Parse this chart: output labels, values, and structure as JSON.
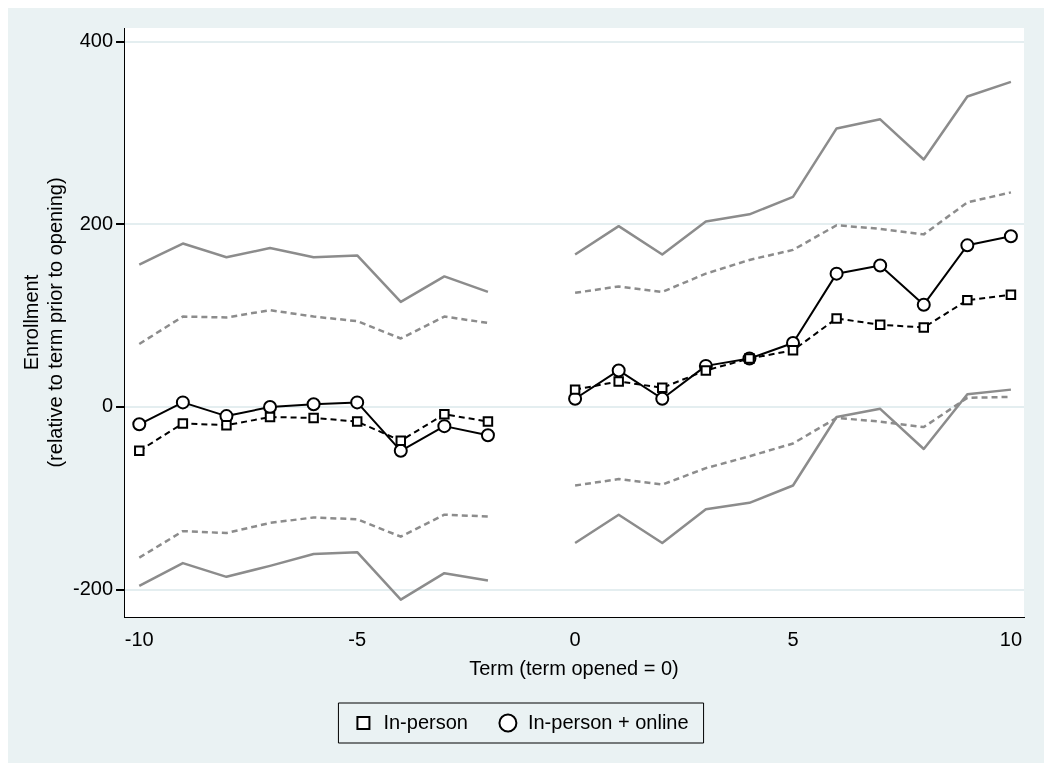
{
  "chart_data": {
    "type": "line",
    "xlabel": "Term (term opened = 0)",
    "ylabel": "Enrollment\n(relative to term prior to opening)",
    "x": [
      -10,
      -9,
      -8,
      -7,
      -6,
      -5,
      -4,
      -3,
      -2,
      -1,
      0,
      1,
      2,
      3,
      4,
      5,
      6,
      7,
      8,
      9,
      10
    ],
    "xlim": [
      -10.35,
      10.3
    ],
    "xticks": [
      -10,
      -5,
      0,
      5,
      10
    ],
    "ylim": [
      -230,
      415
    ],
    "yticks": [
      -200,
      0,
      200,
      400
    ],
    "grid": "y",
    "legend": "bottom",
    "series": [
      {
        "color": "#8c8c8c",
        "line_style": "solid",
        "marker": "none",
        "values": [
          156,
          179,
          164,
          174,
          164,
          166,
          115,
          143,
          126,
          null,
          167,
          198,
          167,
          203,
          211,
          230,
          305,
          315,
          271,
          340,
          356
        ]
      },
      {
        "color": "#8c8c8c",
        "line_style": "dashed",
        "marker": "none",
        "values": [
          69,
          99,
          98,
          106,
          99,
          94,
          75,
          99,
          92,
          null,
          125,
          132,
          126,
          146,
          161,
          172,
          199,
          195,
          189,
          224,
          235
        ]
      },
      {
        "color": "#8c8c8c",
        "line_style": "dashed",
        "marker": "none",
        "values": [
          -165,
          -136,
          -138,
          -127,
          -121,
          -123,
          -142,
          -118,
          -120,
          null,
          -86,
          -79,
          -85,
          -67,
          -54,
          -40,
          -12,
          -16,
          -22,
          10,
          11
        ]
      },
      {
        "color": "#8c8c8c",
        "line_style": "solid",
        "marker": "none",
        "values": [
          -196,
          -171,
          -186,
          -174,
          -161,
          -159,
          -211,
          -182,
          -190,
          null,
          -149,
          -118,
          -149,
          -112,
          -105,
          -86,
          -11,
          -2,
          -46,
          14,
          19
        ]
      },
      {
        "name": "In-person",
        "color": "#000000",
        "line_style": "dashed",
        "marker": "square",
        "values": [
          -48,
          -18,
          -20,
          -11,
          -12,
          -16,
          -37,
          -8,
          -16,
          null,
          19,
          28,
          21,
          40,
          53,
          62,
          97,
          90,
          87,
          117,
          123
        ]
      },
      {
        "name": "In-person + online",
        "color": "#000000",
        "line_style": "solid",
        "marker": "circle",
        "values": [
          -19,
          5,
          -10,
          0,
          3,
          5,
          -48,
          -21,
          -31,
          null,
          9,
          40,
          9,
          45,
          53,
          70,
          146,
          155,
          112,
          177,
          187
        ]
      }
    ]
  }
}
